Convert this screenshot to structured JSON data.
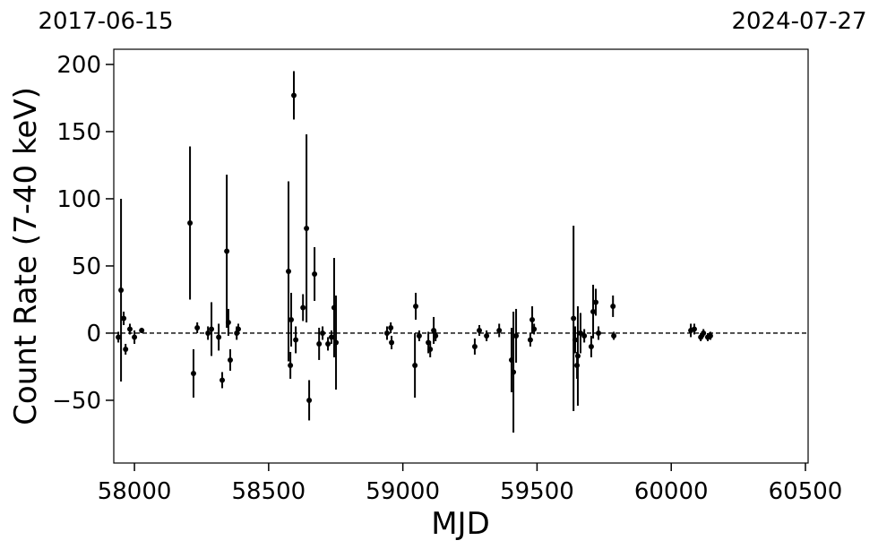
{
  "chart_data": {
    "type": "errorbar",
    "xlabel": "MJD",
    "ylabel": "Count Rate (7-40 keV)",
    "annotations": [
      "2017-06-15",
      "2024-07-27"
    ],
    "color": "#000000",
    "reference_line": 0,
    "xlim": [
      57923,
      60510
    ],
    "ylim": [
      -96.7,
      211.3
    ],
    "xticks": [
      58000,
      58500,
      59000,
      59500,
      60000,
      60500
    ],
    "yticks": [
      {
        "value": -50,
        "label": "−50"
      },
      0,
      50,
      100,
      150,
      200
    ],
    "x": [
      57940,
      57950,
      57960,
      57967,
      57983,
      58000,
      58027,
      58207,
      58220,
      58234,
      58274,
      58287,
      58314,
      58327,
      58344,
      58350,
      58357,
      58381,
      58387,
      58574,
      58581,
      58584,
      58594,
      58601,
      58628,
      58641,
      58651,
      58671,
      58688,
      58701,
      58721,
      58734,
      58744,
      58751,
      58941,
      58955,
      58958,
      59045,
      59048,
      59061,
      59095,
      59102,
      59115,
      59122,
      59268,
      59285,
      59312,
      59359,
      59405,
      59412,
      59422,
      59475,
      59482,
      59489,
      59636,
      59642,
      59649,
      59652,
      59662,
      59676,
      59702,
      59709,
      59719,
      59729,
      59783,
      59786,
      60073,
      60086,
      60110,
      60120,
      60136,
      60146
    ],
    "values": [
      -3,
      32,
      11,
      -12,
      3,
      -3,
      2,
      82,
      -30,
      4,
      0,
      3,
      -3,
      -35,
      61,
      8,
      -20,
      0,
      3,
      46,
      -24,
      10,
      177,
      -5,
      19,
      78,
      -50,
      44,
      -8,
      0,
      -8,
      -3,
      19,
      -7,
      0,
      4,
      -7,
      -24,
      20,
      -2,
      -7,
      -12,
      2,
      -2,
      -10,
      2,
      -2,
      2,
      -20,
      -29,
      -2,
      -5,
      10,
      3,
      11,
      -5,
      -24,
      -17,
      0,
      -2,
      -10,
      16,
      23,
      0,
      20,
      -2,
      2,
      3,
      -3,
      0,
      -3,
      -2
    ],
    "errors": [
      4,
      68,
      5,
      4,
      4,
      5,
      2,
      57,
      18,
      4,
      5,
      20,
      10,
      6,
      57,
      10,
      8,
      5,
      4,
      67,
      10,
      20,
      18,
      10,
      10,
      70,
      15,
      20,
      12,
      5,
      5,
      5,
      37,
      35,
      5,
      4,
      5,
      24,
      10,
      4,
      8,
      6,
      10,
      4,
      6,
      4,
      4,
      5,
      24,
      45,
      20,
      5,
      10,
      4,
      69,
      10,
      10,
      37,
      15,
      5,
      8,
      20,
      10,
      5,
      8,
      3,
      5,
      4,
      3,
      3,
      3,
      3
    ]
  }
}
